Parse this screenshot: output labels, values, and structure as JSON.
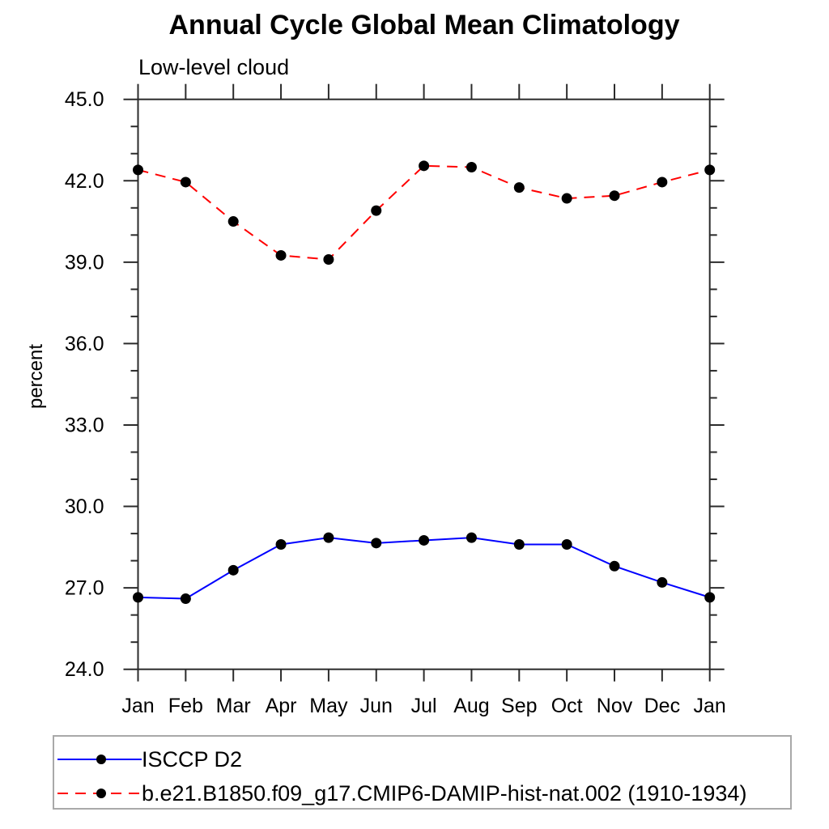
{
  "page": {
    "background_color": "#ffffff",
    "text_color": "#000000",
    "axis_color": "#2b2b2b",
    "legend_border_color": "#a9a9a9"
  },
  "chart_data": {
    "type": "line",
    "title": "Annual Cycle Global Mean Climatology",
    "subtitle": "Low-level cloud",
    "ylabel": "percent",
    "xlabel": "",
    "categories": [
      "Jan",
      "Feb",
      "Mar",
      "Apr",
      "May",
      "Jun",
      "Jul",
      "Aug",
      "Sep",
      "Oct",
      "Nov",
      "Dec",
      "Jan"
    ],
    "ylim": [
      24.0,
      45.0
    ],
    "ytick_major_step": 3.0,
    "ytick_minor_step": 1.0,
    "ytick_labels": [
      "45.0",
      "42.0",
      "39.0",
      "36.0",
      "33.0",
      "30.0",
      "27.0",
      "24.0"
    ],
    "grid": false,
    "legend_position": "bottom-left-box",
    "marker": {
      "shape": "filled-circle",
      "color": "#000000",
      "radius_px": 6.5
    },
    "series": [
      {
        "name": "ISCCP D2",
        "color": "#0000ff",
        "line_style": "solid",
        "values": [
          26.65,
          26.6,
          27.65,
          28.6,
          28.85,
          28.65,
          28.75,
          28.85,
          28.6,
          28.6,
          27.8,
          27.2,
          26.65
        ]
      },
      {
        "name": "b.e21.B1850.f09_g17.CMIP6-DAMIP-hist-nat.002 (1910-1934)",
        "color": "#ff0000",
        "line_style": "dashed",
        "values": [
          42.4,
          41.95,
          40.5,
          39.25,
          39.1,
          40.9,
          42.55,
          42.5,
          41.75,
          41.35,
          41.45,
          41.95,
          42.4
        ]
      }
    ]
  }
}
